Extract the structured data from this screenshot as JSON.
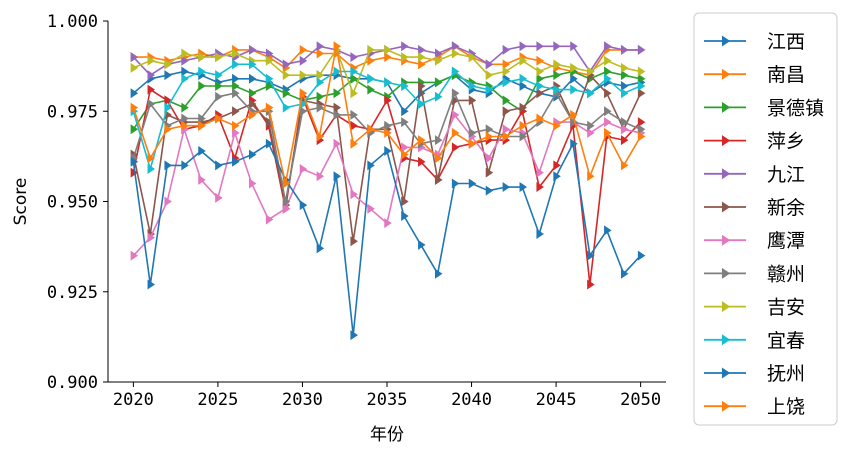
{
  "chart_data": {
    "type": "line",
    "title": "",
    "xlabel": "年份",
    "ylabel": "Score",
    "xlim": [
      2018.5,
      2051.5
    ],
    "ylim": [
      0.9,
      1.0
    ],
    "x_ticks": [
      2020,
      2025,
      2030,
      2035,
      2040,
      2045,
      2050
    ],
    "y_ticks": [
      0.9,
      0.925,
      0.95,
      0.975,
      1.0
    ],
    "x_tick_labels": [
      "2020",
      "2025",
      "2030",
      "2035",
      "2040",
      "2045",
      "2050"
    ],
    "y_tick_labels": [
      "0.900",
      "0.925",
      "0.950",
      "0.975",
      "1.000"
    ],
    "grid": false,
    "legend_position": "outside-right",
    "marker": "triangle-right",
    "x": [
      2020,
      2021,
      2022,
      2023,
      2024,
      2025,
      2026,
      2027,
      2028,
      2029,
      2030,
      2031,
      2032,
      2033,
      2034,
      2035,
      2036,
      2037,
      2038,
      2039,
      2040,
      2041,
      2042,
      2043,
      2044,
      2045,
      2046,
      2047,
      2048,
      2049,
      2050
    ],
    "series": [
      {
        "name": "江西",
        "color": "#1f77b4",
        "values": [
          0.98,
          0.984,
          0.985,
          0.986,
          0.985,
          0.983,
          0.984,
          0.984,
          0.983,
          0.981,
          0.984,
          0.985,
          0.985,
          0.984,
          0.984,
          0.983,
          0.975,
          0.98,
          0.983,
          0.985,
          0.981,
          0.98,
          0.984,
          0.982,
          0.98,
          0.979,
          0.984,
          0.98,
          0.983,
          0.982,
          0.983
        ]
      },
      {
        "name": "南昌",
        "color": "#ff7f0e",
        "values": [
          0.99,
          0.99,
          0.989,
          0.99,
          0.991,
          0.99,
          0.992,
          0.992,
          0.99,
          0.987,
          0.992,
          0.991,
          0.991,
          0.987,
          0.989,
          0.99,
          0.989,
          0.988,
          0.99,
          0.993,
          0.99,
          0.988,
          0.988,
          0.99,
          0.989,
          0.987,
          0.986,
          0.985,
          0.992,
          0.992,
          0.992
        ]
      },
      {
        "name": "景德镇",
        "color": "#2ca02c",
        "values": [
          0.97,
          0.977,
          0.978,
          0.976,
          0.982,
          0.982,
          0.982,
          0.98,
          0.982,
          0.98,
          0.978,
          0.979,
          0.98,
          0.984,
          0.981,
          0.979,
          0.983,
          0.983,
          0.983,
          0.985,
          0.983,
          0.982,
          0.978,
          0.975,
          0.984,
          0.985,
          0.986,
          0.984,
          0.986,
          0.985,
          0.984
        ]
      },
      {
        "name": "萍乡",
        "color": "#d62728",
        "values": [
          0.958,
          0.981,
          0.978,
          0.97,
          0.971,
          0.974,
          0.962,
          0.978,
          0.971,
          0.948,
          0.979,
          0.967,
          0.974,
          0.971,
          0.97,
          0.978,
          0.962,
          0.961,
          0.956,
          0.965,
          0.966,
          0.967,
          0.967,
          0.975,
          0.954,
          0.96,
          0.971,
          0.927,
          0.968,
          0.967,
          0.972
        ]
      },
      {
        "name": "九江",
        "color": "#9467bd",
        "values": [
          0.99,
          0.985,
          0.988,
          0.989,
          0.99,
          0.991,
          0.99,
          0.992,
          0.991,
          0.988,
          0.989,
          0.993,
          0.992,
          0.99,
          0.991,
          0.992,
          0.993,
          0.992,
          0.991,
          0.993,
          0.991,
          0.988,
          0.992,
          0.993,
          0.993,
          0.993,
          0.993,
          0.986,
          0.993,
          0.992,
          0.992
        ]
      },
      {
        "name": "新余",
        "color": "#8c564b",
        "values": [
          0.963,
          0.941,
          0.974,
          0.972,
          0.972,
          0.973,
          0.975,
          0.977,
          0.972,
          0.949,
          0.978,
          0.977,
          0.976,
          0.939,
          0.97,
          0.97,
          0.95,
          0.982,
          0.956,
          0.978,
          0.978,
          0.958,
          0.975,
          0.976,
          0.98,
          0.982,
          0.972,
          0.985,
          0.98,
          0.97,
          0.98
        ]
      },
      {
        "name": "鹰潭",
        "color": "#e377c2",
        "values": [
          0.935,
          0.94,
          0.95,
          0.97,
          0.956,
          0.951,
          0.969,
          0.955,
          0.945,
          0.948,
          0.959,
          0.957,
          0.966,
          0.952,
          0.948,
          0.944,
          0.965,
          0.965,
          0.963,
          0.974,
          0.968,
          0.962,
          0.97,
          0.969,
          0.958,
          0.972,
          0.972,
          0.969,
          0.972,
          0.97,
          0.969
        ]
      },
      {
        "name": "赣州",
        "color": "#7f7f7f",
        "values": [
          0.962,
          0.977,
          0.971,
          0.973,
          0.973,
          0.979,
          0.98,
          0.975,
          0.975,
          0.95,
          0.975,
          0.976,
          0.974,
          0.974,
          0.969,
          0.971,
          0.972,
          0.966,
          0.967,
          0.98,
          0.969,
          0.97,
          0.968,
          0.968,
          0.972,
          0.98,
          0.972,
          0.971,
          0.975,
          0.972,
          0.97
        ]
      },
      {
        "name": "吉安",
        "color": "#bcbd22",
        "values": [
          0.987,
          0.989,
          0.988,
          0.991,
          0.99,
          0.99,
          0.991,
          0.989,
          0.989,
          0.985,
          0.985,
          0.985,
          0.992,
          0.98,
          0.992,
          0.992,
          0.99,
          0.99,
          0.989,
          0.991,
          0.99,
          0.985,
          0.986,
          0.989,
          0.986,
          0.988,
          0.987,
          0.986,
          0.989,
          0.987,
          0.986
        ]
      },
      {
        "name": "宜春",
        "color": "#17becf",
        "values": [
          0.975,
          0.959,
          0.976,
          0.984,
          0.986,
          0.985,
          0.988,
          0.988,
          0.984,
          0.976,
          0.977,
          0.983,
          0.986,
          0.986,
          0.984,
          0.983,
          0.982,
          0.977,
          0.979,
          0.986,
          0.982,
          0.981,
          0.983,
          0.984,
          0.982,
          0.981,
          0.981,
          0.98,
          0.984,
          0.98,
          0.982
        ]
      },
      {
        "name": "抚州",
        "color": "#1f77b4",
        "values": [
          0.961,
          0.927,
          0.96,
          0.96,
          0.964,
          0.96,
          0.961,
          0.963,
          0.966,
          0.956,
          0.949,
          0.937,
          0.957,
          0.913,
          0.96,
          0.964,
          0.946,
          0.938,
          0.93,
          0.955,
          0.955,
          0.953,
          0.954,
          0.954,
          0.941,
          0.957,
          0.966,
          0.935,
          0.942,
          0.93,
          0.935
        ]
      },
      {
        "name": "上饶",
        "color": "#ff7f0e",
        "values": [
          0.976,
          0.962,
          0.97,
          0.971,
          0.971,
          0.973,
          0.971,
          0.974,
          0.976,
          0.955,
          0.98,
          0.968,
          0.993,
          0.966,
          0.97,
          0.969,
          0.963,
          0.967,
          0.962,
          0.969,
          0.966,
          0.968,
          0.968,
          0.971,
          0.973,
          0.971,
          0.974,
          0.957,
          0.969,
          0.96,
          0.968
        ]
      }
    ]
  }
}
